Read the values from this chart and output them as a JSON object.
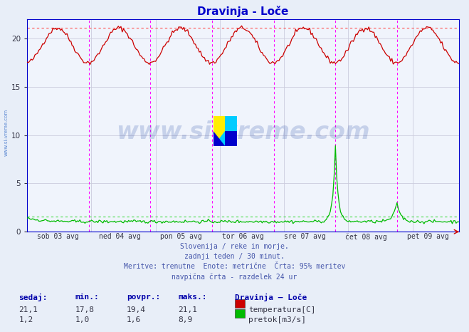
{
  "title": "Dravinja - Loče",
  "title_color": "#0000cc",
  "bg_color": "#e8eef8",
  "plot_bg_color": "#f0f4fc",
  "grid_color": "#ccccdd",
  "vline_color": "#ff00ff",
  "ylim": [
    0,
    22
  ],
  "yticks": [
    0,
    5,
    10,
    15,
    20
  ],
  "xlim": [
    0,
    336
  ],
  "n_points": 337,
  "vline_positions": [
    48,
    96,
    144,
    192,
    240,
    288
  ],
  "tick_positions": [
    24,
    72,
    120,
    168,
    216,
    264,
    312
  ],
  "xlabel_ticks": [
    "sob 03 avg",
    "ned 04 avg",
    "pon 05 avg",
    "tor 06 avg",
    "sre 07 avg",
    "čet 08 avg",
    "pet 09 avg"
  ],
  "temp_color": "#cc0000",
  "flow_color": "#00bb00",
  "temp_dash_color": "#ff5555",
  "flow_dash_color": "#44dd44",
  "temp_max_line": 21.1,
  "flow_avg_line": 1.6,
  "watermark_text": "www.si-vreme.com",
  "watermark_color": "#3355aa",
  "side_watermark_color": "#4477cc",
  "footer_color": "#4455aa",
  "footer_lines": [
    "Slovenija / reke in morje.",
    "zadnji teden / 30 minut.",
    "Meritve: trenutne  Enote: metrične  Črta: 95% meritev",
    "navpična črta - razdelek 24 ur"
  ],
  "legend_title": "Dravinja – Loče",
  "legend_entries": [
    "temperatura[C]",
    "pretok[m3/s]"
  ],
  "legend_colors": [
    "#cc0000",
    "#00bb00"
  ],
  "stats_headers": [
    "sedaj:",
    "min.:",
    "povpr.:",
    "maks.:"
  ],
  "stats_temp": [
    "21,1",
    "17,8",
    "19,4",
    "21,1"
  ],
  "stats_flow": [
    "1,2",
    "1,0",
    "1,6",
    "8,9"
  ],
  "spine_color": "#0000cc",
  "tick_label_color": "#333344",
  "logo_colors": {
    "yellow": "#ffee00",
    "cyan": "#00ccff",
    "blue": "#0000cc"
  }
}
